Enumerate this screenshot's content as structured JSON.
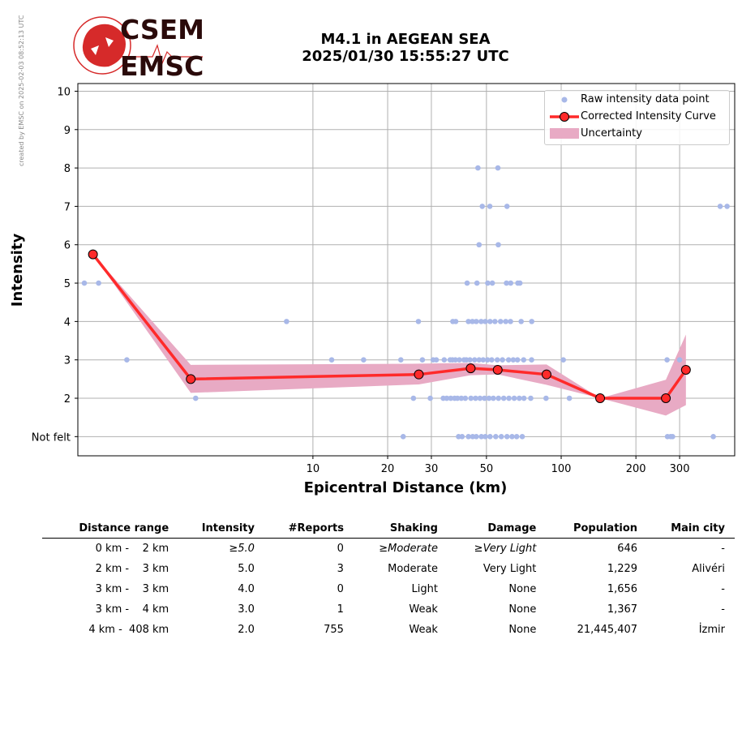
{
  "credit": "created by EMSC on 2025-02-03 08:52:13 UTC",
  "logo": {
    "top": "CSEM",
    "bottom": "EMSC",
    "ring_color": "#d62a2a",
    "text_color": "#2a0a0a"
  },
  "title": {
    "line1": "M4.1 in AEGEAN SEA",
    "line2": "2025/01/30 15:55:27 UTC"
  },
  "legend": {
    "raw": "Raw intensity data point",
    "curve": "Corrected Intensity Curve",
    "uncertainty": "Uncertainty"
  },
  "colors": {
    "raw": "#a8b8e8",
    "curve": "#ff2a2a",
    "band": "#e8aac4",
    "grid": "#b0b0b0"
  },
  "chart_data": {
    "type": "scatter",
    "xlabel": "Epicentral Distance (km)",
    "ylabel": "Intensity",
    "x_scale": "log",
    "xlim": [
      1.13,
      500
    ],
    "ylim": [
      0.5,
      10.2
    ],
    "x_ticks": [
      10,
      20,
      30,
      50,
      100,
      200,
      300
    ],
    "y_ticks": [
      1,
      2,
      3,
      4,
      5,
      6,
      7,
      8,
      9,
      10
    ],
    "y_tick_labels": [
      "Not felt",
      "2",
      "3",
      "4",
      "5",
      "6",
      "7",
      "8",
      "9",
      "10"
    ],
    "grid": true,
    "legend_position": "top-right",
    "raw_points": [
      [
        1.2,
        5
      ],
      [
        1.37,
        5
      ],
      [
        1.78,
        3
      ],
      [
        3.37,
        2
      ],
      [
        7.83,
        4
      ],
      [
        11.9,
        3
      ],
      [
        16,
        3
      ],
      [
        22.6,
        3
      ],
      [
        23.1,
        1
      ],
      [
        25.4,
        2
      ],
      [
        26.6,
        4
      ],
      [
        27.6,
        3
      ],
      [
        29.7,
        2
      ],
      [
        30.5,
        3
      ],
      [
        31.4,
        3
      ],
      [
        33.5,
        2
      ],
      [
        33.8,
        3
      ],
      [
        34.6,
        2
      ],
      [
        35.7,
        3
      ],
      [
        35.9,
        2
      ],
      [
        36.5,
        3
      ],
      [
        36.6,
        4
      ],
      [
        37.2,
        2
      ],
      [
        37.5,
        3
      ],
      [
        37.6,
        4
      ],
      [
        38.2,
        2
      ],
      [
        38.6,
        1
      ],
      [
        38.9,
        3
      ],
      [
        39.6,
        2
      ],
      [
        39.9,
        1
      ],
      [
        40.6,
        3
      ],
      [
        41.1,
        2
      ],
      [
        41.5,
        3
      ],
      [
        41.8,
        5
      ],
      [
        42.3,
        4
      ],
      [
        42.3,
        1
      ],
      [
        42.9,
        3
      ],
      [
        43.3,
        2
      ],
      [
        43.9,
        4
      ],
      [
        44,
        1
      ],
      [
        44.8,
        3
      ],
      [
        45.2,
        2
      ],
      [
        45.5,
        4
      ],
      [
        45.5,
        1
      ],
      [
        45.8,
        5
      ],
      [
        46.2,
        8
      ],
      [
        46.7,
        3
      ],
      [
        46.7,
        6
      ],
      [
        47.1,
        2
      ],
      [
        47.6,
        4
      ],
      [
        47.7,
        1
      ],
      [
        48.1,
        7
      ],
      [
        48.5,
        3
      ],
      [
        49.1,
        2
      ],
      [
        49.5,
        4
      ],
      [
        49.5,
        1
      ],
      [
        50.5,
        3
      ],
      [
        50.6,
        5
      ],
      [
        51.2,
        2
      ],
      [
        51.6,
        7
      ],
      [
        51.7,
        4
      ],
      [
        51.7,
        1
      ],
      [
        52.5,
        3
      ],
      [
        52.8,
        5
      ],
      [
        53.3,
        2
      ],
      [
        54.1,
        4
      ],
      [
        54.5,
        1
      ],
      [
        55.3,
        3
      ],
      [
        55.6,
        8
      ],
      [
        55.8,
        6
      ],
      [
        55.9,
        2
      ],
      [
        57,
        4
      ],
      [
        57.4,
        1
      ],
      [
        58,
        3
      ],
      [
        58.7,
        2
      ],
      [
        59.8,
        4
      ],
      [
        60.2,
        5
      ],
      [
        60.5,
        7
      ],
      [
        60.5,
        1
      ],
      [
        61.4,
        3
      ],
      [
        61.6,
        2
      ],
      [
        62.5,
        4
      ],
      [
        62.6,
        5
      ],
      [
        63.4,
        1
      ],
      [
        64.1,
        3
      ],
      [
        64.7,
        2
      ],
      [
        66.2,
        1
      ],
      [
        66.7,
        3
      ],
      [
        66.9,
        5
      ],
      [
        67.8,
        2
      ],
      [
        68.2,
        5
      ],
      [
        69,
        4
      ],
      [
        69.7,
        1
      ],
      [
        70.6,
        3
      ],
      [
        70.8,
        2
      ],
      [
        75.4,
        2
      ],
      [
        76,
        3
      ],
      [
        76.1,
        4
      ],
      [
        86.9,
        2
      ],
      [
        102,
        3
      ],
      [
        107.9,
        2
      ],
      [
        267,
        3
      ],
      [
        268,
        1
      ],
      [
        276,
        1
      ],
      [
        281,
        1
      ],
      [
        300,
        3
      ],
      [
        410,
        1
      ],
      [
        437,
        7
      ],
      [
        466,
        7
      ]
    ],
    "series": [
      {
        "name": "Corrected Intensity Curve",
        "x": [
          1.3,
          3.22,
          26.7,
          43.2,
          55.5,
          87.3,
          143.5,
          264,
          318
        ],
        "y": [
          5.75,
          2.5,
          2.62,
          2.78,
          2.74,
          2.62,
          2.0,
          2.0,
          2.74
        ]
      },
      {
        "name": "Uncertainty",
        "x": [
          1.3,
          3.22,
          26.7,
          43.2,
          55.5,
          87.3,
          143.5,
          264,
          318
        ],
        "lower": [
          5.75,
          2.14,
          2.36,
          2.6,
          2.62,
          2.35,
          2.0,
          1.55,
          1.82
        ],
        "upper": [
          5.75,
          2.87,
          2.9,
          2.92,
          2.86,
          2.88,
          2.0,
          2.48,
          3.66
        ]
      }
    ]
  },
  "table": {
    "headers": [
      "Distance range",
      "Intensity",
      "#Reports",
      "Shaking",
      "Damage",
      "Population",
      "Main city"
    ],
    "rows": [
      {
        "range": "0 km -    2 km",
        "intensity_prefix": "≥",
        "intensity": "5.0",
        "reports": "0",
        "shaking_prefix": "≥",
        "shaking": "Moderate",
        "damage_prefix": "≥",
        "damage": "Very Light",
        "population": "646",
        "city": "-",
        "italic": true
      },
      {
        "range": "2 km -    3 km",
        "intensity": "5.0",
        "reports": "3",
        "shaking": "Moderate",
        "damage": "Very Light",
        "population": "1,229",
        "city": "Alivéri"
      },
      {
        "range": "3 km -    3 km",
        "intensity": "4.0",
        "reports": "0",
        "shaking": "Light",
        "damage": "None",
        "population": "1,656",
        "city": "-"
      },
      {
        "range": "3 km -    4 km",
        "intensity": "3.0",
        "reports": "1",
        "shaking": "Weak",
        "damage": "None",
        "population": "1,367",
        "city": "-"
      },
      {
        "range": "4 km -  408 km",
        "intensity": "2.0",
        "reports": "755",
        "shaking": "Weak",
        "damage": "None",
        "population": "21,445,407",
        "city": "İzmir"
      }
    ]
  }
}
